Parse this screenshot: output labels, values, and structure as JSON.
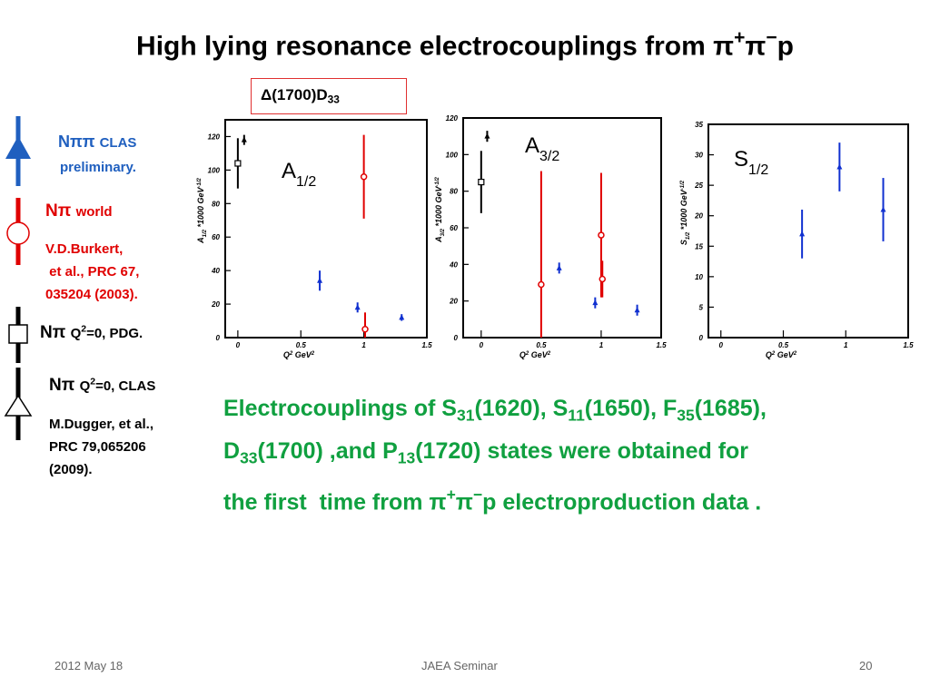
{
  "title": [
    "High lying resonance electrocouplings from π",
    "+",
    "π",
    "−",
    "p"
  ],
  "state_box": [
    "Δ(1700)D",
    "33"
  ],
  "legend": [
    {
      "symbol": "Nππ",
      "label": "CLAS",
      "note": [
        "preliminary."
      ]
    },
    {
      "symbol": "Nπ",
      "label": "world",
      "note": [
        "V.D.Burkert,",
        " et al., PRC 67,",
        "035204 (2003)."
      ]
    },
    {
      "symbol": "Nπ",
      "label": [
        "Q",
        "2",
        "=0, PDG."
      ]
    },
    {
      "symbol": "Nπ",
      "label": [
        "Q",
        "2",
        "=0, CLAS"
      ],
      "note": [
        "M.Dugger, et al.,",
        "PRC 79,065206",
        "(2009)."
      ]
    }
  ],
  "body_text": [
    "Electrocouplings of S",
    "31",
    "(1620), S",
    "11",
    "(1650), F",
    "35",
    "(1685),",
    "D",
    "33",
    "(1700) ,and P",
    "13",
    "(1720) states were obtained for",
    "the first  time from π",
    "+",
    "π",
    "−",
    "p electroproduction data ."
  ],
  "footer": {
    "date": "2012 May 18",
    "event": "JAEA Seminar",
    "page": "20"
  },
  "chart_data": [
    {
      "type": "scatter",
      "label": [
        "A",
        "1/2"
      ],
      "ylabel": [
        "A",
        "1/2",
        " *1000 GeV",
        "-1/2"
      ],
      "xlabel": [
        "Q",
        "2",
        " GeV",
        "2"
      ],
      "xlim": [
        -0.1,
        1.5
      ],
      "ylim": [
        0,
        130
      ],
      "xticks": [
        0,
        0.5,
        1,
        1.5
      ],
      "yticks": [
        0,
        20,
        40,
        60,
        80,
        100,
        120
      ],
      "series": [
        {
          "color": "#1030d0",
          "marker": "triangle",
          "x": [
            0.65,
            0.95,
            1.3
          ],
          "values": [
            34,
            18,
            12
          ],
          "errors": [
            6,
            3,
            2
          ]
        },
        {
          "color": "#e00000",
          "marker": "circle",
          "x": [
            1.0,
            1.01
          ],
          "values": [
            96,
            5
          ],
          "errors": [
            25,
            10
          ]
        },
        {
          "color": "#000000",
          "marker": "square",
          "x": [
            0
          ],
          "values": [
            104
          ],
          "errors": [
            15
          ]
        },
        {
          "color": "#000000",
          "marker": "triangle",
          "x": [
            0.05
          ],
          "values": [
            118
          ],
          "errors": [
            3
          ]
        }
      ]
    },
    {
      "type": "scatter",
      "label": [
        "A",
        "3/2"
      ],
      "ylabel": [
        "A",
        "3/2",
        " *1000 GeV",
        "-1/2"
      ],
      "xlabel": [
        "Q",
        "2",
        " GeV",
        "2"
      ],
      "xlim": [
        -0.15,
        1.5
      ],
      "ylim": [
        0,
        120
      ],
      "xticks": [
        0,
        0.5,
        1,
        1.5
      ],
      "yticks": [
        0,
        20,
        40,
        60,
        80,
        100,
        120
      ],
      "series": [
        {
          "color": "#1030d0",
          "marker": "triangle",
          "x": [
            0.65,
            0.95,
            1.3
          ],
          "values": [
            38,
            19,
            15
          ],
          "errors": [
            3,
            3,
            3
          ]
        },
        {
          "color": "#e00000",
          "marker": "circle",
          "x": [
            0.5,
            1.0,
            1.01
          ],
          "values": [
            29,
            56,
            32
          ],
          "errors": [
            62,
            34,
            10
          ]
        },
        {
          "color": "#000000",
          "marker": "square",
          "x": [
            0
          ],
          "values": [
            85
          ],
          "errors": [
            17
          ]
        },
        {
          "color": "#000000",
          "marker": "triangle",
          "x": [
            0.05
          ],
          "values": [
            110
          ],
          "errors": [
            3
          ]
        }
      ]
    },
    {
      "type": "scatter",
      "label": [
        "S",
        "1/2"
      ],
      "ylabel": [
        "S",
        "1/2",
        " *1000 GeV",
        "-1/2"
      ],
      "xlabel": [
        "Q",
        "2",
        " GeV",
        "2"
      ],
      "xlim": [
        -0.1,
        1.5
      ],
      "ylim": [
        0,
        35
      ],
      "xticks": [
        0,
        0.5,
        1,
        1.5
      ],
      "yticks": [
        0,
        5,
        10,
        15,
        20,
        25,
        30,
        35
      ],
      "series": [
        {
          "color": "#1030d0",
          "marker": "triangle",
          "x": [
            0.65,
            0.95,
            1.3
          ],
          "values": [
            17,
            28,
            21
          ],
          "errors": [
            4,
            4,
            5.2
          ]
        }
      ]
    }
  ]
}
